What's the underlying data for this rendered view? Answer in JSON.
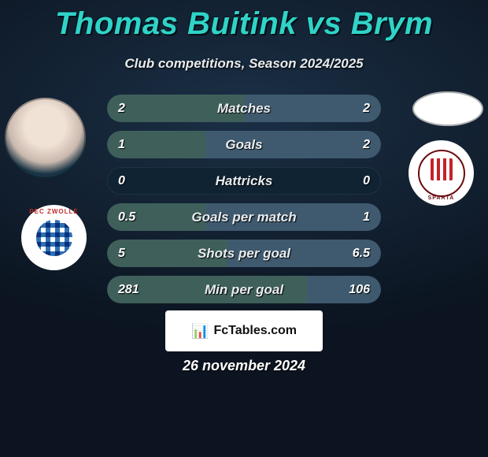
{
  "title_color": "#30d3c8",
  "background_color": "#0b1420",
  "header": {
    "player1": "Thomas Buitink",
    "vs": "vs",
    "player2": "Brym",
    "subtitle": "Club competitions, Season 2024/2025"
  },
  "colors": {
    "left_bar": "#3f605a",
    "right_bar": "#3f5a6e",
    "row_bg": "#102333",
    "text": "#e9edf0"
  },
  "badges": {
    "team1_short": "PEC ZWOLLE",
    "team2_short": "SPARTA"
  },
  "rows": [
    {
      "label": "Matches",
      "left_val": "2",
      "right_val": "2",
      "left_pct": 50,
      "right_pct": 50
    },
    {
      "label": "Goals",
      "left_val": "1",
      "right_val": "2",
      "left_pct": 36,
      "right_pct": 64
    },
    {
      "label": "Hattricks",
      "left_val": "0",
      "right_val": "0",
      "left_pct": 0,
      "right_pct": 0
    },
    {
      "label": "Goals per match",
      "left_val": "0.5",
      "right_val": "1",
      "left_pct": 36,
      "right_pct": 64
    },
    {
      "label": "Shots per goal",
      "left_val": "5",
      "right_val": "6.5",
      "left_pct": 44,
      "right_pct": 56
    },
    {
      "label": "Min per goal",
      "left_val": "281",
      "right_val": "106",
      "left_pct": 73,
      "right_pct": 27
    }
  ],
  "watermark": {
    "icon": "📊",
    "text": "FcTables.com"
  },
  "date": "26 november 2024"
}
